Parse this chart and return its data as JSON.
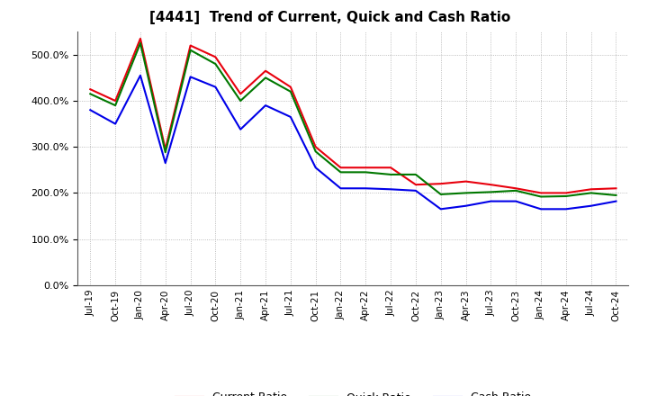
{
  "title": "[4441]  Trend of Current, Quick and Cash Ratio",
  "x_labels": [
    "Jul-19",
    "Oct-19",
    "Jan-20",
    "Apr-20",
    "Jul-20",
    "Oct-20",
    "Jan-21",
    "Apr-21",
    "Jul-21",
    "Oct-21",
    "Jan-22",
    "Apr-22",
    "Jul-22",
    "Oct-22",
    "Jan-23",
    "Apr-23",
    "Jul-23",
    "Oct-23",
    "Jan-24",
    "Apr-24",
    "Jul-24",
    "Oct-24"
  ],
  "current_ratio": [
    4.25,
    4.0,
    5.35,
    2.95,
    5.2,
    4.95,
    4.15,
    4.65,
    4.3,
    3.0,
    2.55,
    2.55,
    2.55,
    2.18,
    2.2,
    2.25,
    2.18,
    2.1,
    2.0,
    2.0,
    2.08,
    2.1
  ],
  "quick_ratio": [
    4.15,
    3.9,
    5.25,
    2.88,
    5.1,
    4.8,
    4.0,
    4.5,
    4.2,
    2.9,
    2.45,
    2.45,
    2.4,
    2.4,
    1.97,
    2.0,
    2.02,
    2.05,
    1.92,
    1.93,
    2.0,
    1.95
  ],
  "cash_ratio": [
    3.8,
    3.5,
    4.55,
    2.65,
    4.52,
    4.3,
    3.38,
    3.9,
    3.65,
    2.55,
    2.1,
    2.1,
    2.08,
    2.05,
    1.65,
    1.72,
    1.82,
    1.82,
    1.65,
    1.65,
    1.72,
    1.82
  ],
  "current_color": "#e8000d",
  "quick_color": "#007800",
  "cash_color": "#0000e8",
  "background_color": "#ffffff",
  "grid_color": "#aaaaaa",
  "ylim": [
    0.0,
    5.5
  ],
  "yticks": [
    0.0,
    1.0,
    2.0,
    3.0,
    4.0,
    5.0
  ],
  "legend_labels": [
    "Current Ratio",
    "Quick Ratio",
    "Cash Ratio"
  ]
}
